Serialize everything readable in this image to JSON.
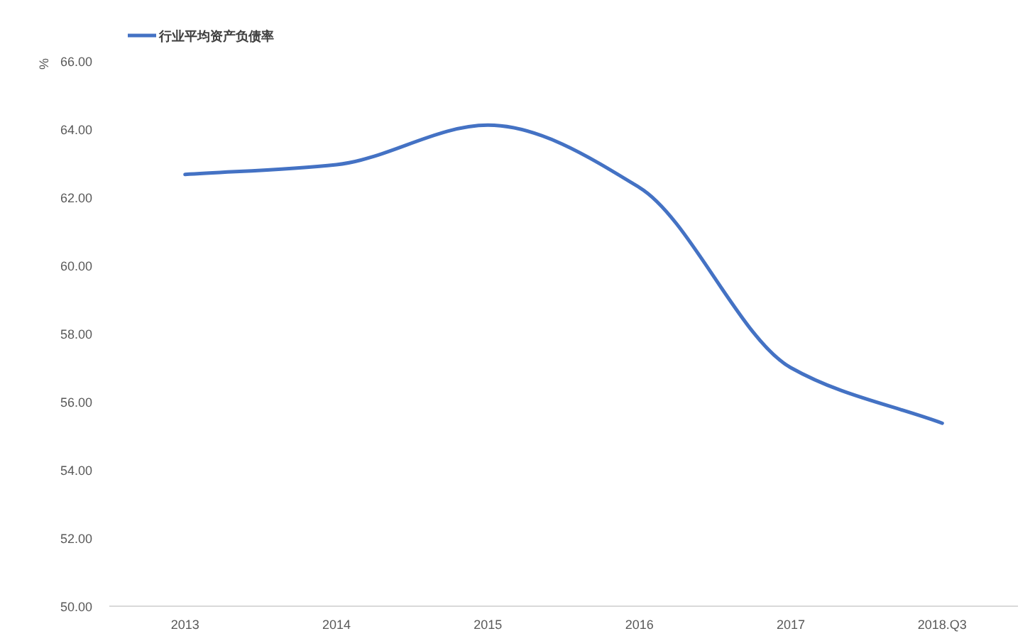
{
  "chart_data": {
    "type": "line",
    "ylabel": "%",
    "categories": [
      "2013",
      "2014",
      "2015",
      "2016",
      "2017",
      "2018.Q3"
    ],
    "series": [
      {
        "name": "行业平均资产负债率",
        "color": "#4472c4",
        "values": [
          62.67,
          62.96,
          64.12,
          62.29,
          57.0,
          55.37
        ]
      }
    ],
    "ylim": [
      50,
      66
    ],
    "yticks": [
      {
        "value": 50,
        "label": "50.00"
      },
      {
        "value": 52,
        "label": "52.00"
      },
      {
        "value": 54,
        "label": "54.00"
      },
      {
        "value": 56,
        "label": "56.00"
      },
      {
        "value": 58,
        "label": "58.00"
      },
      {
        "value": 60,
        "label": "60.00"
      },
      {
        "value": 62,
        "label": "62.00"
      },
      {
        "value": 64,
        "label": "64.00"
      },
      {
        "value": 66,
        "label": "66.00"
      }
    ],
    "grid": false,
    "legend": "top left",
    "marker": "none",
    "line_style": "solid"
  }
}
